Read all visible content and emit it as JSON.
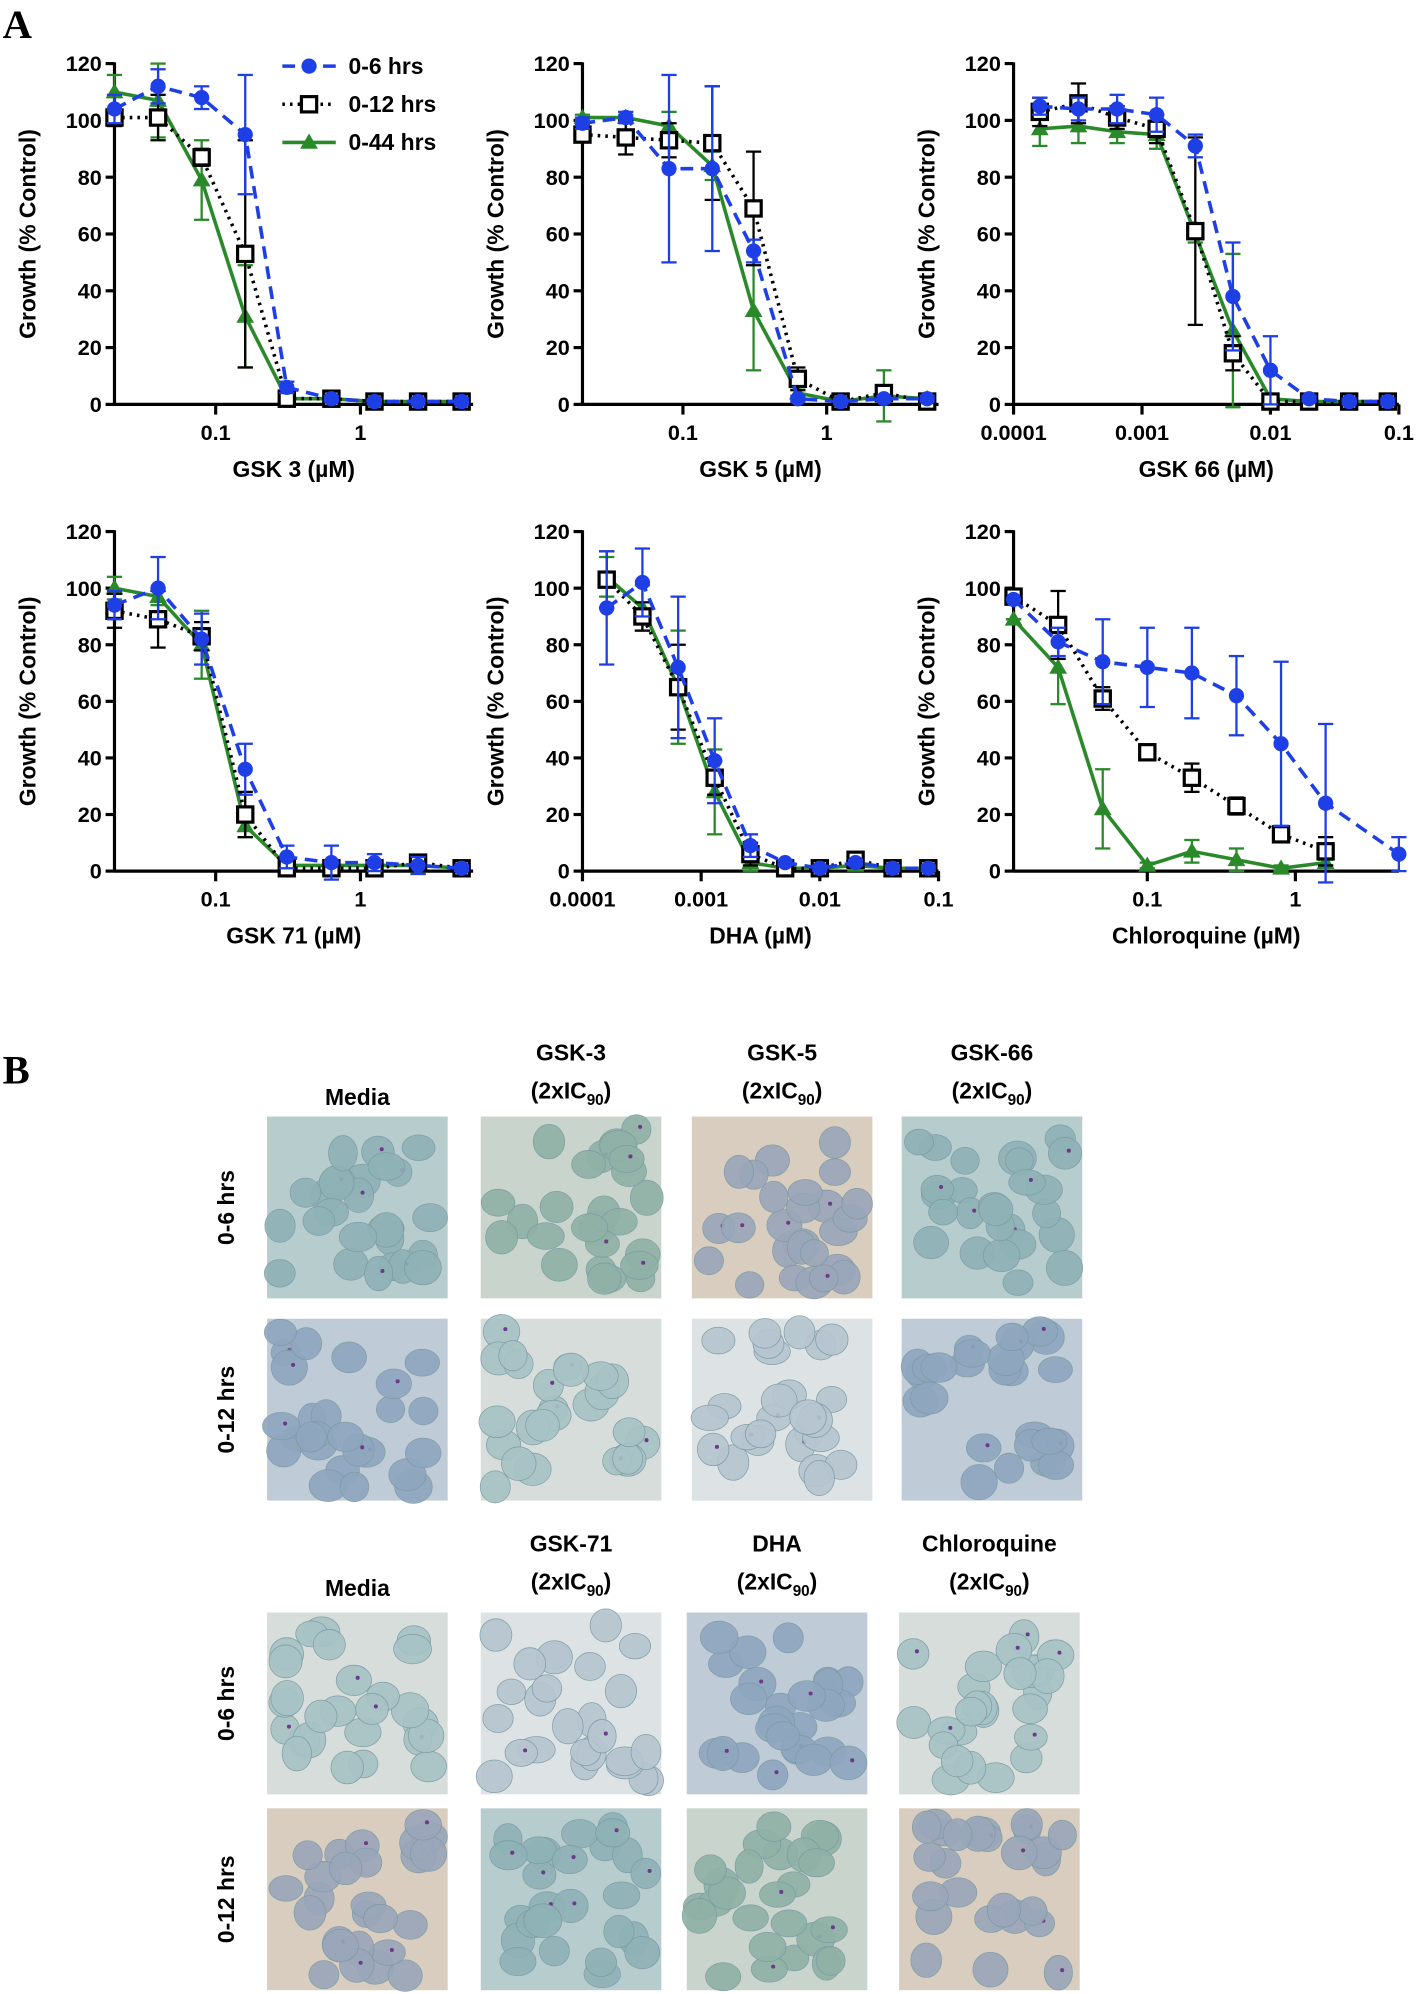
{
  "panel_labels": [
    "A",
    "B"
  ],
  "chart_data": [
    {
      "type": "line",
      "xscale": "log",
      "xlabel": "GSK 3 (µM)",
      "ylabel": "Growth (% Control)",
      "legend": "upper right",
      "xlim": [
        0.02,
        6
      ],
      "xticks": [
        0.1,
        1
      ],
      "ylim": [
        0,
        120
      ],
      "yticks": [
        0,
        20,
        40,
        60,
        80,
        100,
        120
      ],
      "x": [
        0.02,
        0.04,
        0.08,
        0.16,
        0.31,
        0.63,
        1.25,
        2.5,
        5
      ],
      "series": [
        {
          "name": "0-6 hrs",
          "color": "#1f3fe6",
          "marker": "circle",
          "linestyle": "dashed",
          "values": [
            104,
            112,
            108,
            95,
            6,
            2,
            1,
            1,
            1
          ],
          "errors": [
            5,
            6,
            4,
            21,
            2,
            1,
            1,
            1,
            1
          ]
        },
        {
          "name": "0-12 hrs",
          "color": "#000000",
          "marker": "square",
          "linestyle": "dotted",
          "values": [
            101,
            101,
            87,
            53,
            2,
            2,
            1,
            1,
            1
          ],
          "errors": [
            3,
            8,
            3,
            40,
            1,
            1,
            1,
            1,
            1
          ]
        },
        {
          "name": "0-44 hrs",
          "color": "#2a8a2a",
          "marker": "triangle",
          "linestyle": "solid",
          "values": [
            110,
            107,
            79,
            31,
            2,
            2,
            1,
            1,
            1
          ],
          "errors": [
            6,
            13,
            14,
            18,
            1,
            1,
            1,
            1,
            1
          ]
        }
      ]
    },
    {
      "type": "line",
      "xscale": "log",
      "xlabel": "GSK 5 (µM)",
      "ylabel": "Growth (% Control)",
      "xlim": [
        0.02,
        6
      ],
      "xticks": [
        0.1,
        1
      ],
      "ylim": [
        0,
        120
      ],
      "yticks": [
        0,
        20,
        40,
        60,
        80,
        100,
        120
      ],
      "x": [
        0.02,
        0.04,
        0.08,
        0.16,
        0.31,
        0.63,
        1.25,
        2.5,
        5
      ],
      "series": [
        {
          "color": "#1f3fe6",
          "marker": "circle",
          "linestyle": "dashed",
          "values": [
            99,
            101,
            83,
            83,
            54,
            2,
            1,
            2,
            2
          ],
          "errors": [
            2,
            2,
            33,
            29,
            4,
            1,
            1,
            1,
            1
          ]
        },
        {
          "color": "#000000",
          "marker": "square",
          "linestyle": "dotted",
          "values": [
            95,
            94,
            93,
            92,
            69,
            9,
            1,
            4,
            1
          ],
          "errors": [
            2,
            6,
            6,
            20,
            20,
            4,
            1,
            2,
            1
          ]
        },
        {
          "color": "#2a8a2a",
          "marker": "triangle",
          "linestyle": "solid",
          "values": [
            101,
            101,
            98,
            84,
            33,
            4,
            1,
            3,
            2
          ],
          "errors": [
            1,
            1,
            5,
            5,
            21,
            2,
            1,
            9,
            1
          ]
        }
      ]
    },
    {
      "type": "line",
      "xscale": "log",
      "xlabel": "GSK 66 (µM)",
      "ylabel": "Growth (% Control)",
      "xlim": [
        0.0001,
        0.1
      ],
      "xticks": [
        0.0001,
        0.001,
        0.01,
        0.1
      ],
      "ylim": [
        0,
        120
      ],
      "yticks": [
        0,
        20,
        40,
        60,
        80,
        100,
        120
      ],
      "x": [
        0.00016,
        0.00032,
        0.00064,
        0.0013,
        0.0026,
        0.0051,
        0.01,
        0.02,
        0.041,
        0.082
      ],
      "series": [
        {
          "color": "#1f3fe6",
          "marker": "circle",
          "linestyle": "dashed",
          "values": [
            105,
            104,
            104,
            102,
            91,
            38,
            12,
            2,
            1,
            1
          ],
          "errors": [
            3,
            4,
            5,
            6,
            4,
            19,
            12,
            1,
            1,
            1
          ]
        },
        {
          "color": "#000000",
          "marker": "square",
          "linestyle": "dotted",
          "values": [
            103,
            106,
            101,
            97,
            61,
            18,
            1,
            1,
            1,
            1
          ],
          "errors": [
            5,
            7,
            4,
            5,
            33,
            6,
            1,
            1,
            1,
            1
          ]
        },
        {
          "color": "#2a8a2a",
          "marker": "triangle",
          "linestyle": "solid",
          "values": [
            97,
            98,
            96,
            95,
            60,
            26,
            2,
            1,
            1,
            1
          ],
          "errors": [
            6,
            6,
            4,
            5,
            3,
            27,
            1,
            1,
            1,
            1
          ]
        }
      ]
    },
    {
      "type": "line",
      "xscale": "log",
      "xlabel": "GSK 71 (µM)",
      "ylabel": "Growth (% Control)",
      "xlim": [
        0.02,
        6
      ],
      "xticks": [
        0.1,
        1
      ],
      "ylim": [
        0,
        120
      ],
      "yticks": [
        0,
        20,
        40,
        60,
        80,
        100,
        120
      ],
      "x": [
        0.02,
        0.04,
        0.08,
        0.16,
        0.31,
        0.63,
        1.25,
        2.5,
        5
      ],
      "series": [
        {
          "color": "#1f3fe6",
          "marker": "circle",
          "linestyle": "dashed",
          "values": [
            94,
            100,
            82,
            36,
            5,
            3,
            3,
            2,
            1
          ],
          "errors": [
            5,
            11,
            9,
            9,
            4,
            6,
            3,
            3,
            1
          ]
        },
        {
          "color": "#000000",
          "marker": "square",
          "linestyle": "dotted",
          "values": [
            92,
            89,
            83,
            20,
            1,
            1,
            1,
            3,
            1
          ],
          "errors": [
            6,
            10,
            5,
            8,
            1,
            1,
            1,
            1,
            1
          ]
        },
        {
          "color": "#2a8a2a",
          "marker": "triangle",
          "linestyle": "solid",
          "values": [
            100,
            97,
            80,
            16,
            2,
            2,
            2,
            2,
            1
          ],
          "errors": [
            4,
            3,
            12,
            4,
            1,
            1,
            1,
            3,
            1
          ]
        }
      ]
    },
    {
      "type": "line",
      "xscale": "log",
      "xlabel": "DHA (µM)",
      "ylabel": "Growth (% Control)",
      "xlim": [
        0.0001,
        0.1
      ],
      "xticks": [
        0.0001,
        0.001,
        0.01,
        0.1
      ],
      "ylim": [
        0,
        120
      ],
      "yticks": [
        0,
        20,
        40,
        60,
        80,
        100,
        120
      ],
      "x": [
        0.00016,
        0.00032,
        0.00064,
        0.0013,
        0.0026,
        0.0051,
        0.01,
        0.02,
        0.041,
        0.082
      ],
      "series": [
        {
          "color": "#1f3fe6",
          "marker": "circle",
          "linestyle": "dashed",
          "values": [
            93,
            102,
            72,
            39,
            9,
            3,
            1,
            3,
            1,
            1
          ],
          "errors": [
            20,
            12,
            25,
            15,
            4,
            1,
            1,
            1,
            1,
            1
          ]
        },
        {
          "color": "#000000",
          "marker": "square",
          "linestyle": "dotted",
          "values": [
            103,
            90,
            65,
            33,
            6,
            1,
            1,
            4,
            1,
            1
          ],
          "errors": [
            10,
            5,
            15,
            6,
            4,
            1,
            1,
            1,
            1,
            1
          ]
        },
        {
          "color": "#2a8a2a",
          "marker": "triangle",
          "linestyle": "solid",
          "values": [
            104,
            93,
            65,
            28,
            3,
            1,
            1,
            2,
            1,
            1
          ],
          "errors": [
            7,
            8,
            20,
            15,
            3,
            1,
            1,
            1,
            1,
            1
          ]
        }
      ]
    },
    {
      "type": "line",
      "xscale": "log",
      "xlabel": "Chloroquine (µM)",
      "ylabel": "Growth (% Control)",
      "xlim": [
        0.0125,
        5
      ],
      "xticks": [
        0.1,
        1
      ],
      "ylim": [
        0,
        120
      ],
      "yticks": [
        0,
        20,
        40,
        60,
        80,
        100,
        120
      ],
      "x": [
        0.0125,
        0.025,
        0.05,
        0.1,
        0.2,
        0.4,
        0.8,
        1.6,
        5
      ],
      "series": [
        {
          "color": "#1f3fe6",
          "marker": "circle",
          "linestyle": "dashed",
          "values": [
            96,
            81,
            74,
            72,
            70,
            62,
            45,
            24,
            6
          ],
          "errors": [
            0,
            5,
            15,
            14,
            16,
            14,
            29,
            28,
            6
          ]
        },
        {
          "color": "#000000",
          "marker": "square",
          "linestyle": "dotted",
          "values": [
            97,
            87,
            61,
            42,
            33,
            23,
            13,
            7,
            null
          ],
          "errors": [
            0,
            12,
            4,
            2,
            5,
            3,
            2,
            5,
            null
          ]
        },
        {
          "color": "#2a8a2a",
          "marker": "triangle",
          "linestyle": "solid",
          "values": [
            89,
            72,
            22,
            2,
            7,
            4,
            1,
            3,
            null
          ],
          "errors": [
            0,
            13,
            14,
            1,
            4,
            4,
            1,
            1,
            null
          ]
        }
      ]
    }
  ],
  "micrographs": [
    {
      "columns": [
        {
          "label": "Media"
        },
        {
          "label": "GSK-3",
          "dose": "(2xIC",
          "dose_sub": "90",
          "dose_end": ")"
        },
        {
          "label": "GSK-5",
          "dose": "(2xIC",
          "dose_sub": "90",
          "dose_end": ")"
        },
        {
          "label": "GSK-66",
          "dose": "(2xIC",
          "dose_sub": "90",
          "dose_end": ")"
        }
      ],
      "rows": [
        "0-6 hrs",
        "0-12 hrs"
      ]
    },
    {
      "columns": [
        {
          "label": "Media"
        },
        {
          "label": "GSK-71",
          "dose": "(2xIC",
          "dose_sub": "90",
          "dose_end": ")"
        },
        {
          "label": "DHA",
          "dose": "(2xIC",
          "dose_sub": "90",
          "dose_end": ")"
        },
        {
          "label": "Chloroquine",
          "dose": "(2xIC",
          "dose_sub": "90",
          "dose_end": ")"
        }
      ],
      "rows": [
        "0-6 hrs",
        "0-12 hrs"
      ]
    }
  ]
}
